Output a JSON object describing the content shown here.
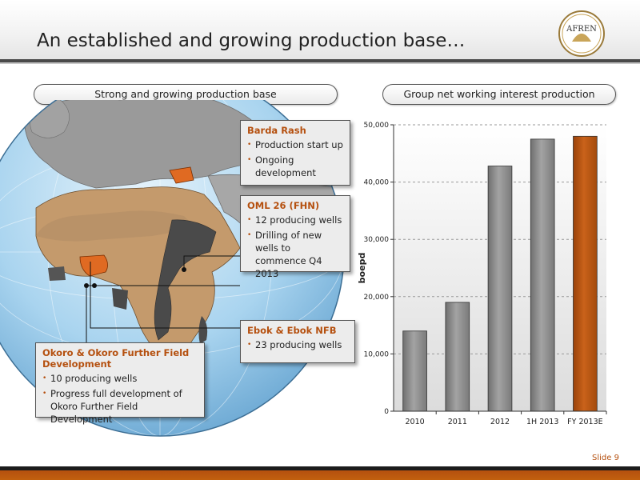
{
  "slide": {
    "title": "An established and growing production base…",
    "logo_text": "AFREN",
    "slide_number": "Slide 9"
  },
  "left_panel": {
    "header": "Strong and growing production base",
    "callouts": [
      {
        "title": "Barda Rash",
        "bullets": [
          "Production start up",
          "Ongoing development"
        ]
      },
      {
        "title": "OML 26 (FHN)",
        "bullets": [
          "12 producing wells",
          "Drilling of new wells to commence Q4 2013"
        ]
      },
      {
        "title": "Ebok & Ebok NFB",
        "bullets": [
          "23 producing wells"
        ]
      },
      {
        "title": "Okoro & Okoro Further Field Development",
        "bullets": [
          "10 producing wells",
          "Progress full development of Okoro Further Field Development"
        ]
      }
    ]
  },
  "colors": {
    "accent": "#b5500f",
    "bar_grey": "#8a8a8a",
    "bar_highlight": "#b5500f"
  },
  "chart_data": {
    "type": "bar",
    "title": "Group net working interest production",
    "ylabel": "boepd",
    "xlabel": "",
    "categories": [
      "2010",
      "2011",
      "2012",
      "1H 2013",
      "FY 2013E"
    ],
    "values": [
      14000,
      19000,
      42800,
      47500,
      48000
    ],
    "highlight_index": 4,
    "ylim": [
      0,
      50000
    ],
    "yticks": [
      0,
      10000,
      20000,
      30000,
      40000,
      50000
    ],
    "ytick_labels": [
      "0",
      "10,000",
      "20,000",
      "30,000",
      "40,000",
      "50,000"
    ],
    "grid": true
  }
}
